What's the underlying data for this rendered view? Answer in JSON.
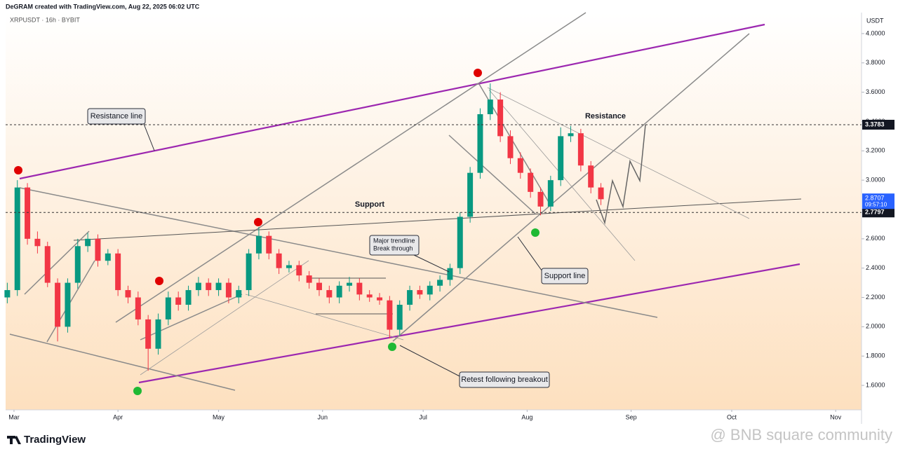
{
  "header": {
    "credit": "DeGRAM created with TradingView.com, Aug 22, 2025 06:02 UTC",
    "symbol": "XRPUSDT · 16h · BYBIT",
    "currency": "USDT",
    "brand": "TradingView",
    "watermark": "@ BNB square community"
  },
  "annotations": {
    "resistance_line": "Resistance line",
    "support": "Support",
    "trendline_break": [
      "Major trendline",
      "Break through"
    ],
    "support_line": "Support line",
    "resistance": "Resistance",
    "retest": "Retest following breakout"
  },
  "chart_data": {
    "type": "candlestick",
    "title": "XRPUSDT",
    "up_color": "#089981",
    "down_color": "#f23645",
    "xlim": [
      -2.5,
      252.7
    ],
    "ylim": [
      1.433,
      4.143
    ],
    "grid": false,
    "xticks": [
      {
        "value": 0,
        "label": "Mar"
      },
      {
        "value": 31,
        "label": "Apr"
      },
      {
        "value": 61,
        "label": "May"
      },
      {
        "value": 92,
        "label": "Jun"
      },
      {
        "value": 122,
        "label": "Jul"
      },
      {
        "value": 153,
        "label": "Aug"
      },
      {
        "value": 184,
        "label": "Sep"
      },
      {
        "value": 214,
        "label": "Oct"
      },
      {
        "value": 245,
        "label": "Nov"
      }
    ],
    "yticks": [
      {
        "value": 1.6,
        "label": "1.6000"
      },
      {
        "value": 1.8,
        "label": "1.8000"
      },
      {
        "value": 2.0,
        "label": "2.0000"
      },
      {
        "value": 2.2,
        "label": "2.2000"
      },
      {
        "value": 2.4,
        "label": "2.4000"
      },
      {
        "value": 2.6,
        "label": "2.6000"
      },
      {
        "value": 2.8,
        "label": "2.8000"
      },
      {
        "value": 3.0,
        "label": "3.0000"
      },
      {
        "value": 3.2,
        "label": "3.2000"
      },
      {
        "value": 3.4,
        "label": "3.4000"
      },
      {
        "value": 3.6,
        "label": "3.6000"
      },
      {
        "value": 3.8,
        "label": "3.8000"
      },
      {
        "value": 4.0,
        "label": "4.0000"
      }
    ],
    "price_lines": [
      {
        "value": 3.3783,
        "label": "3.3783",
        "color": "#131722"
      },
      {
        "value": 2.7797,
        "label": "2.7797",
        "color": "#131722"
      }
    ],
    "last_price": {
      "value": 2.8707,
      "label": "2.8707",
      "timer": "09:57:10",
      "color": "#2962ff"
    },
    "x": [
      -2,
      1,
      4,
      7,
      10,
      13,
      16,
      19,
      22,
      25,
      28,
      31,
      34,
      37,
      40,
      43,
      46,
      49,
      52,
      55,
      58,
      61,
      64,
      67,
      70,
      73,
      76,
      79,
      82,
      85,
      88,
      91,
      94,
      97,
      100,
      103,
      106,
      109,
      112,
      115,
      118,
      121,
      124,
      127,
      130,
      133,
      136,
      139,
      142,
      145,
      148,
      151,
      154,
      157,
      160,
      163,
      166,
      169,
      172,
      175
    ],
    "open": [
      2.2,
      2.25,
      2.95,
      2.6,
      2.55,
      2.3,
      2.0,
      2.3,
      2.55,
      2.6,
      2.45,
      2.5,
      2.25,
      2.2,
      2.05,
      1.85,
      2.05,
      2.2,
      2.15,
      2.25,
      2.3,
      2.25,
      2.3,
      2.2,
      2.25,
      2.5,
      2.62,
      2.5,
      2.4,
      2.42,
      2.35,
      2.3,
      2.25,
      2.2,
      2.28,
      2.3,
      2.22,
      2.2,
      2.18,
      1.98,
      2.15,
      2.25,
      2.22,
      2.28,
      2.32,
      2.4,
      2.75,
      3.05,
      3.45,
      3.55,
      3.3,
      3.15,
      3.05,
      2.92,
      2.82,
      3.0,
      3.3,
      3.32,
      3.1,
      2.95
    ],
    "close": [
      2.25,
      2.95,
      2.6,
      2.55,
      2.3,
      2.0,
      2.3,
      2.55,
      2.6,
      2.45,
      2.5,
      2.25,
      2.2,
      2.05,
      1.85,
      2.05,
      2.2,
      2.15,
      2.25,
      2.3,
      2.25,
      2.3,
      2.2,
      2.25,
      2.5,
      2.62,
      2.5,
      2.4,
      2.42,
      2.35,
      2.3,
      2.25,
      2.2,
      2.28,
      2.3,
      2.22,
      2.2,
      2.18,
      1.98,
      2.15,
      2.25,
      2.22,
      2.28,
      2.32,
      2.4,
      2.75,
      3.05,
      3.45,
      3.55,
      3.3,
      3.15,
      3.05,
      2.92,
      2.82,
      3.0,
      3.3,
      3.32,
      3.1,
      2.95,
      2.87
    ],
    "high": [
      2.3,
      3.0,
      2.98,
      2.65,
      2.58,
      2.33,
      2.33,
      2.6,
      2.64,
      2.63,
      2.53,
      2.53,
      2.28,
      2.24,
      2.08,
      2.09,
      2.24,
      2.24,
      2.28,
      2.34,
      2.33,
      2.33,
      2.33,
      2.28,
      2.53,
      2.68,
      2.65,
      2.53,
      2.45,
      2.45,
      2.38,
      2.33,
      2.28,
      2.31,
      2.34,
      2.33,
      2.25,
      2.23,
      2.21,
      2.18,
      2.28,
      2.28,
      2.31,
      2.35,
      2.43,
      2.78,
      3.09,
      3.49,
      3.66,
      3.6,
      3.34,
      3.19,
      3.08,
      2.95,
      3.03,
      3.36,
      3.37,
      3.35,
      3.13,
      2.98
    ],
    "low": [
      2.16,
      2.21,
      2.56,
      2.5,
      2.27,
      1.9,
      1.96,
      2.26,
      2.51,
      2.41,
      2.42,
      2.21,
      2.16,
      2.01,
      1.7,
      1.81,
      2.01,
      2.11,
      2.11,
      2.21,
      2.21,
      2.21,
      2.16,
      2.16,
      2.21,
      2.46,
      2.46,
      2.36,
      2.37,
      2.31,
      2.26,
      2.21,
      2.16,
      2.16,
      2.24,
      2.18,
      2.17,
      2.15,
      1.92,
      1.94,
      2.11,
      2.19,
      2.18,
      2.24,
      2.28,
      2.36,
      2.71,
      3.01,
      3.41,
      3.26,
      3.11,
      3.01,
      2.88,
      2.76,
      2.79,
      2.96,
      3.26,
      3.06,
      2.91,
      2.83
    ]
  }
}
